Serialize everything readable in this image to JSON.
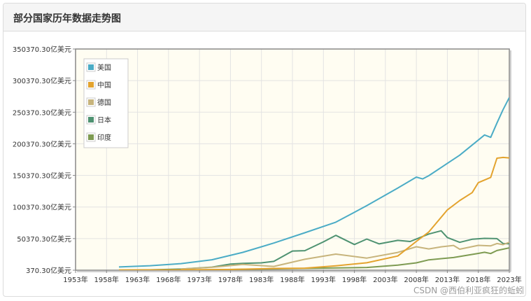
{
  "panel": {
    "title": "部分国家历年数据走势图"
  },
  "watermark": "CSDN @西伯利亚疯狂的蚯蚓",
  "chart_data": {
    "type": "line",
    "title": "",
    "xlabel": "",
    "ylabel": "",
    "x_unit": "年",
    "y_unit": "亿美元",
    "xlim": [
      1953,
      2023
    ],
    "ylim": [
      370.3,
      350370.3
    ],
    "x_ticks": [
      1953,
      1958,
      1963,
      1968,
      1973,
      1978,
      1983,
      1988,
      1993,
      1998,
      2003,
      2008,
      2013,
      2018,
      2023
    ],
    "y_ticks": [
      370.3,
      50370.3,
      100370.3,
      150370.3,
      200370.3,
      250370.3,
      300370.3,
      350370.3
    ],
    "y_tick_labels": [
      "370.30亿美元",
      "50370.30亿美元",
      "100370.30亿美元",
      "150370.30亿美元",
      "200370.30亿美元",
      "250370.30亿美元",
      "300370.30亿美元",
      "350370.30亿美元"
    ],
    "x_tick_labels": [
      "1953年",
      "1958年",
      "1963年",
      "1968年",
      "1973年",
      "1978年",
      "1983年",
      "1988年",
      "1993年",
      "1998年",
      "2003年",
      "2008年",
      "2013年",
      "2018年",
      "2023年"
    ],
    "grid": true,
    "legend_position": "top-left",
    "colors": {
      "plot_background": "#fffdf2",
      "grid": "#e3e3e3",
      "axis": "#888888"
    },
    "series": [
      {
        "name": "美国",
        "color": "#4bacc6",
        "points": [
          [
            1960,
            5433
          ],
          [
            1965,
            7439
          ],
          [
            1970,
            10734
          ],
          [
            1975,
            16848
          ],
          [
            1980,
            28573
          ],
          [
            1985,
            43390
          ],
          [
            1990,
            59631
          ],
          [
            1995,
            76398
          ],
          [
            2000,
            102509
          ],
          [
            2005,
            130392
          ],
          [
            2008,
            147699
          ],
          [
            2009,
            144789
          ],
          [
            2010,
            149920
          ],
          [
            2015,
            182383
          ],
          [
            2019,
            214330
          ],
          [
            2020,
            210600
          ],
          [
            2021,
            233150
          ],
          [
            2022,
            254500
          ],
          [
            2023,
            273600
          ]
        ]
      },
      {
        "name": "中国",
        "color": "#e3a32e",
        "points": [
          [
            1960,
            597
          ],
          [
            1970,
            926
          ],
          [
            1978,
            1495
          ],
          [
            1985,
            3094
          ],
          [
            1990,
            3609
          ],
          [
            1995,
            7345
          ],
          [
            2000,
            12113
          ],
          [
            2005,
            22860
          ],
          [
            2008,
            45940
          ],
          [
            2010,
            60872
          ],
          [
            2013,
            95704
          ],
          [
            2015,
            110616
          ],
          [
            2017,
            123104
          ],
          [
            2018,
            138948
          ],
          [
            2020,
            147227
          ],
          [
            2021,
            177600
          ],
          [
            2022,
            178800
          ],
          [
            2023,
            178000
          ]
        ]
      },
      {
        "name": "德国",
        "color": "#c7b47c",
        "points": [
          [
            1970,
            2150
          ],
          [
            1975,
            4900
          ],
          [
            1980,
            9500
          ],
          [
            1985,
            6400
          ],
          [
            1990,
            17700
          ],
          [
            1995,
            25900
          ],
          [
            2000,
            19500
          ],
          [
            2005,
            28500
          ],
          [
            2008,
            37500
          ],
          [
            2010,
            34000
          ],
          [
            2012,
            37400
          ],
          [
            2014,
            39600
          ],
          [
            2015,
            33600
          ],
          [
            2018,
            39700
          ],
          [
            2020,
            38900
          ],
          [
            2021,
            42600
          ],
          [
            2022,
            40800
          ],
          [
            2023,
            44600
          ]
        ]
      },
      {
        "name": "日本",
        "color": "#4e9271",
        "points": [
          [
            1960,
            443
          ],
          [
            1965,
            910
          ],
          [
            1970,
            2126
          ],
          [
            1975,
            5210
          ],
          [
            1978,
            10100
          ],
          [
            1980,
            11100
          ],
          [
            1983,
            12000
          ],
          [
            1985,
            14300
          ],
          [
            1988,
            30700
          ],
          [
            1990,
            31300
          ],
          [
            1993,
            45200
          ],
          [
            1995,
            55500
          ],
          [
            1998,
            41000
          ],
          [
            2000,
            49700
          ],
          [
            2002,
            42000
          ],
          [
            2005,
            47600
          ],
          [
            2007,
            45800
          ],
          [
            2010,
            57600
          ],
          [
            2012,
            62700
          ],
          [
            2013,
            52100
          ],
          [
            2015,
            44400
          ],
          [
            2017,
            49300
          ],
          [
            2019,
            50800
          ],
          [
            2021,
            50300
          ],
          [
            2022,
            42600
          ],
          [
            2023,
            42100
          ]
        ]
      },
      {
        "name": "印度",
        "color": "#7e9b52",
        "points": [
          [
            1960,
            370
          ],
          [
            1970,
            620
          ],
          [
            1980,
            1863
          ],
          [
            1990,
            3210
          ],
          [
            2000,
            4680
          ],
          [
            2005,
            8340
          ],
          [
            2008,
            12000
          ],
          [
            2010,
            16750
          ],
          [
            2014,
            20400
          ],
          [
            2018,
            27000
          ],
          [
            2019,
            28700
          ],
          [
            2020,
            26700
          ],
          [
            2021,
            31500
          ],
          [
            2023,
            35700
          ]
        ]
      }
    ]
  }
}
